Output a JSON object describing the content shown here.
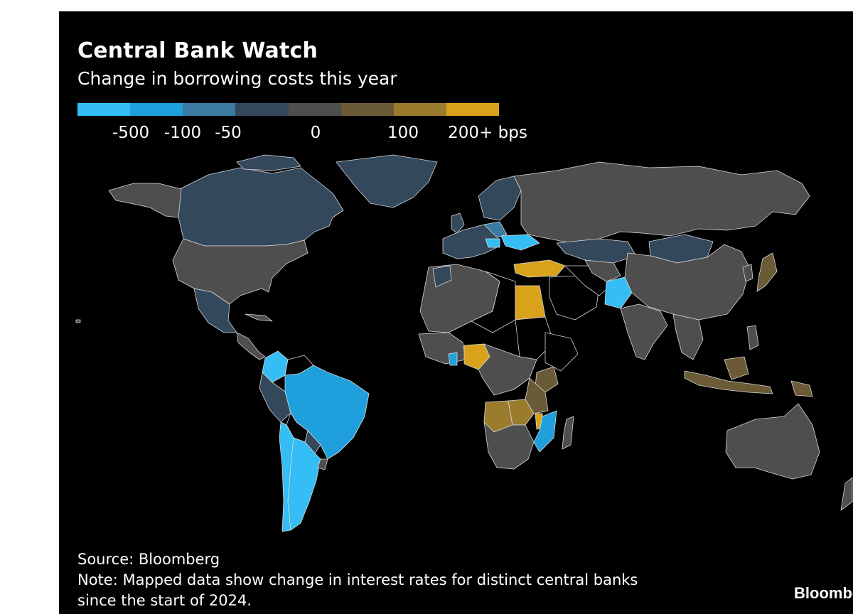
{
  "title": "Central Bank Watch",
  "subtitle": "Change in borrowing costs this year",
  "legend": {
    "unit": "bps",
    "swatches": [
      "#35bdf5",
      "#1fa0dc",
      "#3a7aa3",
      "#34485c",
      "#4e4e4e",
      "#6b5a36",
      "#9a7c2c",
      "#d9a21b"
    ],
    "ticks": [
      "-500",
      "-100",
      "-50",
      "0",
      "100",
      "200+ bps"
    ]
  },
  "colors": {
    "background": "#000000",
    "no_data": "#000000",
    "border": "#d8d8d8"
  },
  "regions": [
    {
      "name": "Canada",
      "bucket": "-50 to 0"
    },
    {
      "name": "Greenland",
      "bucket": "-50 to 0"
    },
    {
      "name": "United States",
      "bucket": "0"
    },
    {
      "name": "Mexico",
      "bucket": "-50 to 0"
    },
    {
      "name": "Brazil",
      "bucket": "-100 to -50"
    },
    {
      "name": "Argentina",
      "bucket": "-500 to -100"
    },
    {
      "name": "Colombia",
      "bucket": "-500 to -100"
    },
    {
      "name": "Peru",
      "bucket": "-50 to 0"
    },
    {
      "name": "Chile",
      "bucket": "-500 to -100"
    },
    {
      "name": "Eurozone",
      "bucket": "-50 to 0"
    },
    {
      "name": "Russia",
      "bucket": "0"
    },
    {
      "name": "Ukraine",
      "bucket": "-500 to -100"
    },
    {
      "name": "Turkey",
      "bucket": "200+"
    },
    {
      "name": "Egypt",
      "bucket": "200+"
    },
    {
      "name": "Nigeria",
      "bucket": "200+"
    },
    {
      "name": "Angola",
      "bucket": "100 to 200"
    },
    {
      "name": "Zambia",
      "bucket": "100 to 200"
    },
    {
      "name": "Kenya",
      "bucket": "0 to 100"
    },
    {
      "name": "Tanzania",
      "bucket": "0 to 100"
    },
    {
      "name": "Mozambique",
      "bucket": "-100 to -50"
    },
    {
      "name": "South Africa",
      "bucket": "0"
    },
    {
      "name": "Kazakhstan",
      "bucket": "-50 to 0"
    },
    {
      "name": "Mongolia",
      "bucket": "-50 to 0"
    },
    {
      "name": "Pakistan",
      "bucket": "-500 to -100"
    },
    {
      "name": "China",
      "bucket": "0"
    },
    {
      "name": "India",
      "bucket": "0"
    },
    {
      "name": "Japan",
      "bucket": "0 to 100"
    },
    {
      "name": "Indonesia",
      "bucket": "0 to 100"
    },
    {
      "name": "Philippines",
      "bucket": "0 to 100"
    },
    {
      "name": "Australia",
      "bucket": "0"
    }
  ],
  "source": "Source: Bloomberg",
  "note_line1": "Note: Mapped data show change in interest rates for distinct central banks",
  "note_line2": "since the start of 2024.",
  "brand": "Bloomberg"
}
